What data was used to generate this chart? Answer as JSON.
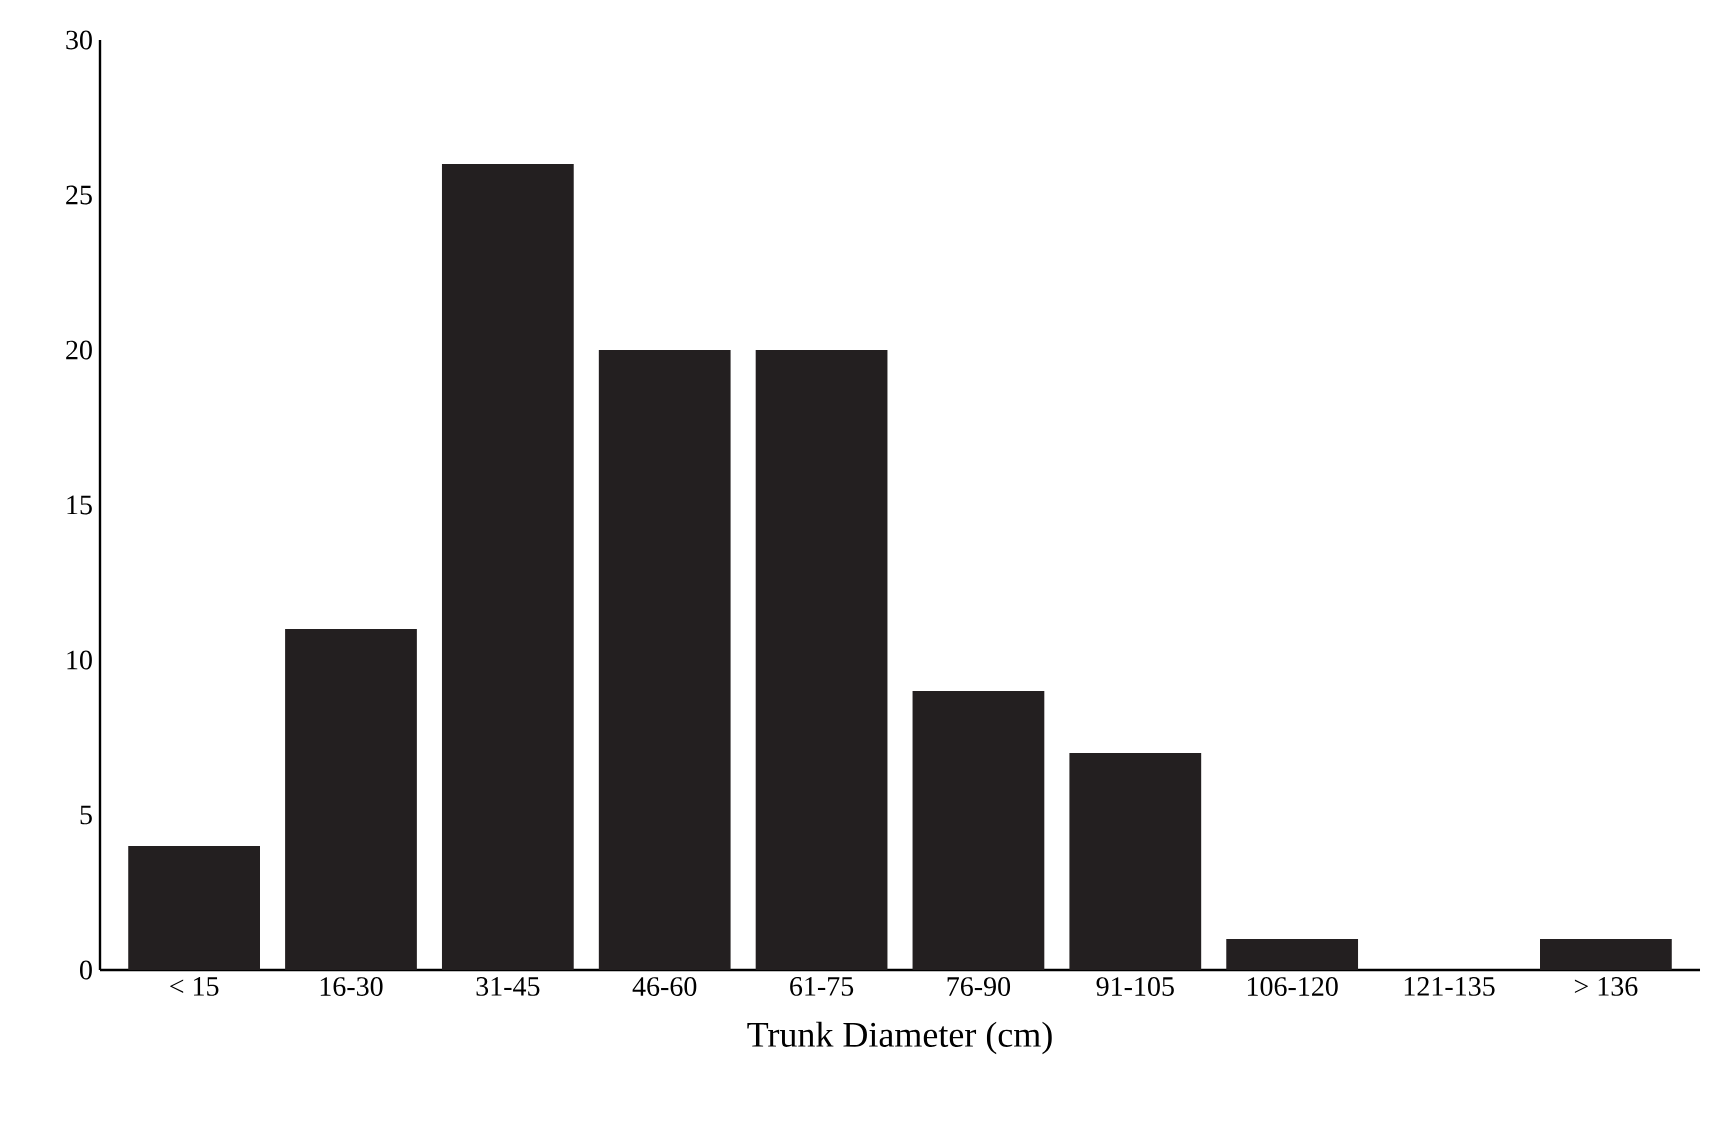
{
  "chart_data": {
    "type": "bar",
    "xlabel": "Trunk Diameter (cm)",
    "categories": [
      "< 15",
      "16-30",
      "31-45",
      "46-60",
      "61-75",
      "76-90",
      "91-105",
      "106-120",
      "121-135",
      "> 136"
    ],
    "values": [
      4,
      11,
      26,
      20,
      20,
      9,
      7,
      1,
      0,
      1
    ],
    "color": "#231f20",
    "ylim": [
      0,
      30
    ],
    "yticks": [
      0,
      5,
      10,
      15,
      20,
      25,
      30
    ],
    "grid": false
  }
}
